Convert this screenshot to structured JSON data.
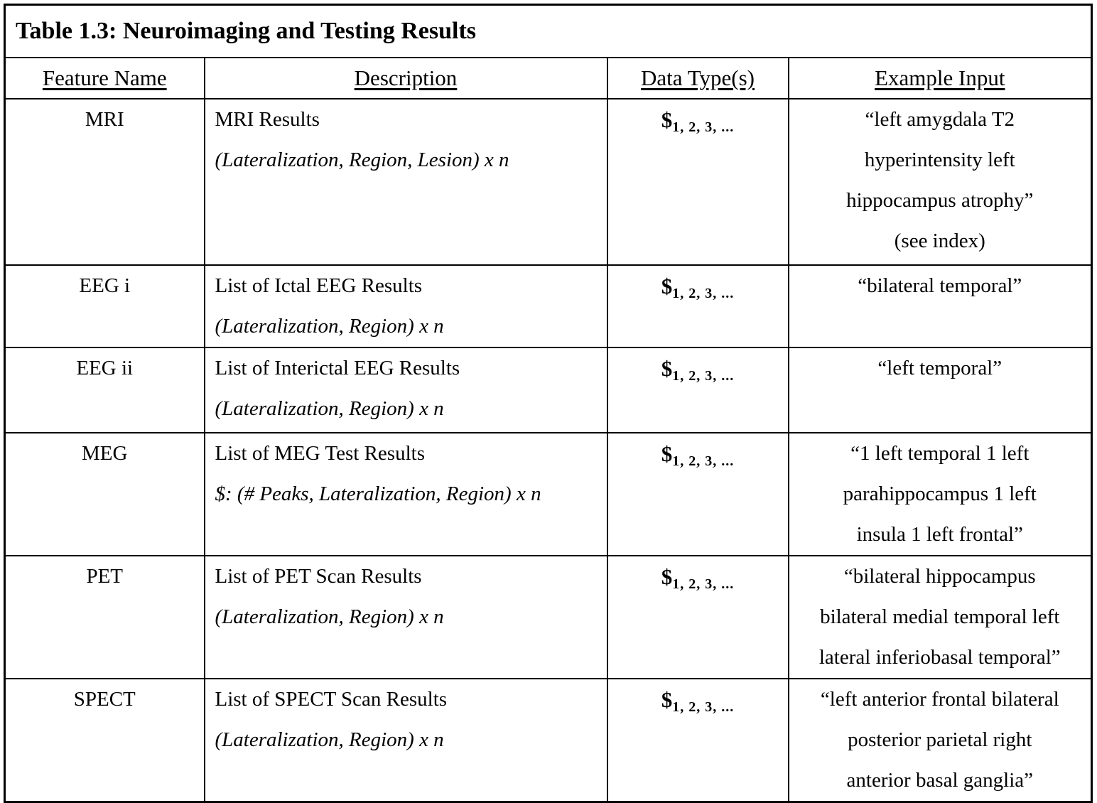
{
  "page": {
    "background_color": "#ffffff",
    "text_color": "#000000",
    "border_color": "#000000"
  },
  "table": {
    "title": "Table 1.3: Neuroimaging and Testing Results",
    "columns": [
      "Feature Name",
      "Description",
      "Data Type(s)",
      "Example Input"
    ],
    "rows": [
      {
        "feature": "MRI",
        "description_main": "MRI Results",
        "description_detail": "(Lateralization, Region, Lesion) x n",
        "data_type": {
          "symbol": "$",
          "subscript": "1, 2, 3, ..."
        },
        "example_lines": [
          "“left amygdala T2",
          "hyperintensity left",
          "hippocampus atrophy”",
          "(see index)"
        ]
      },
      {
        "feature": "EEG i",
        "description_main": "List of Ictal EEG Results",
        "description_detail": "(Lateralization, Region) x n",
        "data_type": {
          "symbol": "$",
          "subscript": "1, 2, 3, ..."
        },
        "example_lines": [
          "“bilateral temporal”"
        ]
      },
      {
        "feature": "EEG ii",
        "description_main": "List of Interictal EEG Results",
        "description_detail": "(Lateralization, Region) x n",
        "data_type": {
          "symbol": "$",
          "subscript": "1, 2, 3, ..."
        },
        "example_lines": [
          "“left temporal”"
        ]
      },
      {
        "feature": "MEG",
        "description_main": "List of MEG Test Results",
        "description_detail": "$: (# Peaks, Lateralization, Region) x n",
        "data_type": {
          "symbol": "$",
          "subscript": "1, 2, 3, ..."
        },
        "example_lines": [
          "“1 left temporal 1 left",
          "parahippocampus 1 left",
          "insula 1 left frontal”"
        ]
      },
      {
        "feature": "PET",
        "description_main": "List of PET Scan Results",
        "description_detail": "(Lateralization, Region) x n",
        "data_type": {
          "symbol": "$",
          "subscript": "1, 2, 3, ..."
        },
        "example_lines": [
          "“bilateral hippocampus",
          "bilateral medial temporal left",
          "lateral inferiobasal temporal”"
        ]
      },
      {
        "feature": "SPECT",
        "description_main": "List of SPECT Scan Results",
        "description_detail": "(Lateralization, Region) x n",
        "data_type": {
          "symbol": "$",
          "subscript": "1, 2, 3, ..."
        },
        "example_lines": [
          "“left anterior frontal bilateral",
          "posterior parietal right",
          "anterior basal ganglia”"
        ]
      }
    ]
  }
}
